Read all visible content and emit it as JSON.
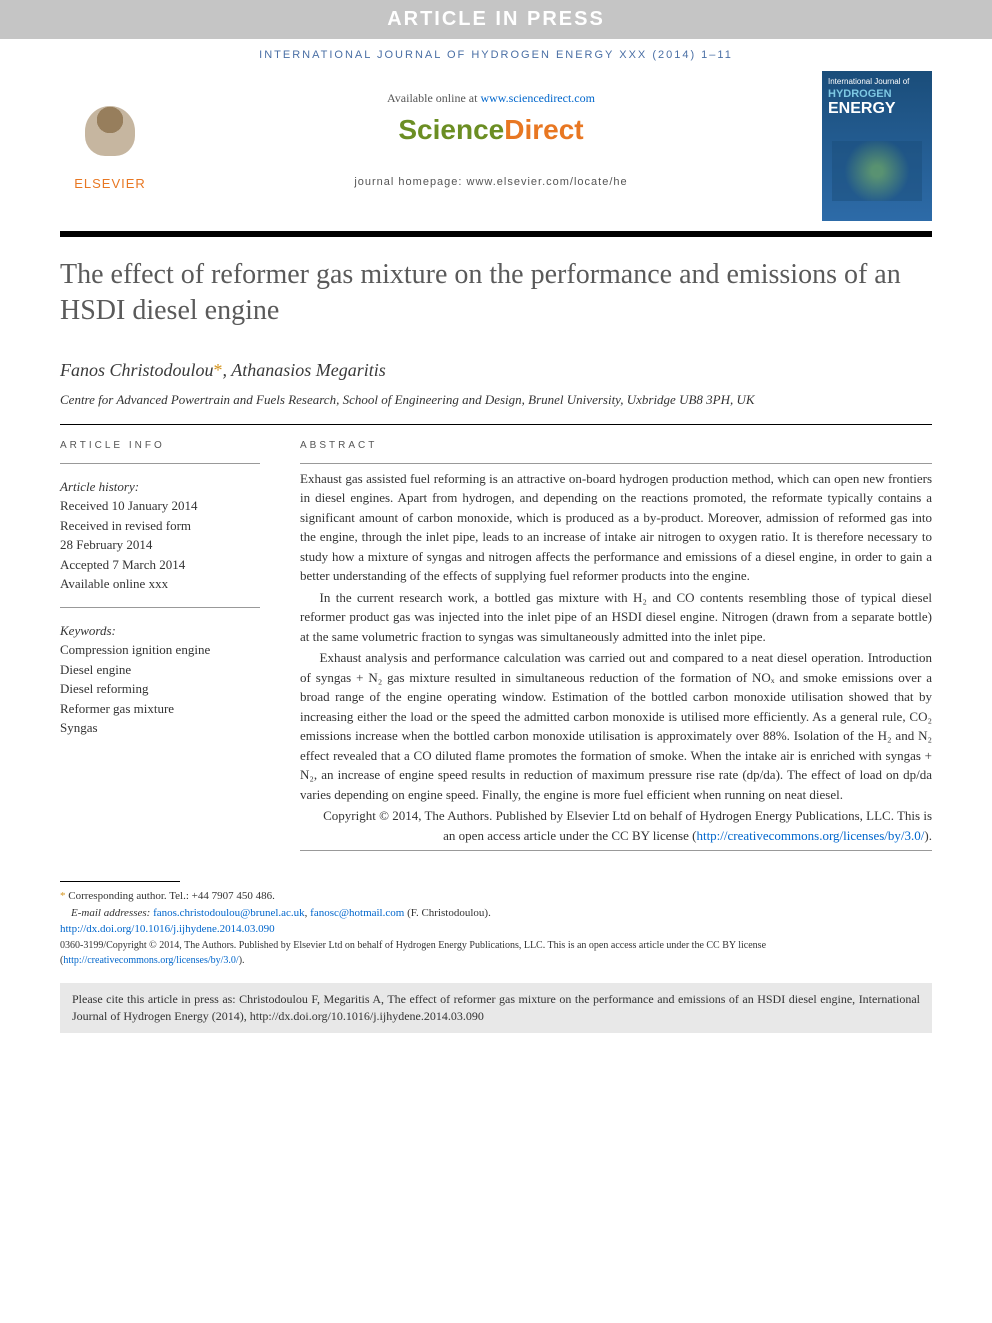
{
  "banner": "ARTICLE IN PRESS",
  "journal_ref": "INTERNATIONAL JOURNAL OF HYDROGEN ENERGY XXX (2014) 1–11",
  "header": {
    "available_prefix": "Available online at ",
    "available_link": "www.sciencedirect.com",
    "brand_a": "Science",
    "brand_b": "Direct",
    "homepage": "journal homepage: www.elsevier.com/locate/he",
    "publisher": "ELSEVIER",
    "cover_supertitle": "International Journal of",
    "cover_hydrogen": "HYDROGEN",
    "cover_energy": "ENERGY"
  },
  "title": "The effect of reformer gas mixture on the performance and emissions of an HSDI diesel engine",
  "authors": {
    "a1": "Fanos Christodoulou",
    "a2": "Athanasios Megaritis",
    "corr_marker": "*"
  },
  "affiliation": "Centre for Advanced Powertrain and Fuels Research, School of Engineering and Design, Brunel University, Uxbridge UB8 3PH, UK",
  "info": {
    "heading": "ARTICLE INFO",
    "history_label": "Article history:",
    "received": "Received 10 January 2014",
    "revised_l1": "Received in revised form",
    "revised_l2": "28 February 2014",
    "accepted": "Accepted 7 March 2014",
    "available": "Available online xxx",
    "kw_label": "Keywords:",
    "kw1": "Compression ignition engine",
    "kw2": "Diesel engine",
    "kw3": "Diesel reforming",
    "kw4": "Reformer gas mixture",
    "kw5": "Syngas"
  },
  "abstract": {
    "heading": "ABSTRACT",
    "p1": "Exhaust gas assisted fuel reforming is an attractive on-board hydrogen production method, which can open new frontiers in diesel engines. Apart from hydrogen, and depending on the reactions promoted, the reformate typically contains a significant amount of carbon monoxide, which is produced as a by-product. Moreover, admission of reformed gas into the engine, through the inlet pipe, leads to an increase of intake air nitrogen to oxygen ratio. It is therefore necessary to study how a mixture of syngas and nitrogen affects the performance and emissions of a diesel engine, in order to gain a better understanding of the effects of supplying fuel reformer products into the engine.",
    "p2": "In the current research work, a bottled gas mixture with H₂ and CO contents resembling those of typical diesel reformer product gas was injected into the inlet pipe of an HSDI diesel engine. Nitrogen (drawn from a separate bottle) at the same volumetric fraction to syngas was simultaneously admitted into the inlet pipe.",
    "p3": "Exhaust analysis and performance calculation was carried out and compared to a neat diesel operation. Introduction of syngas + N₂ gas mixture resulted in simultaneous reduction of the formation of NOₓ and smoke emissions over a broad range of the engine operating window. Estimation of the bottled carbon monoxide utilisation showed that by increasing either the load or the speed the admitted carbon monoxide is utilised more efficiently. As a general rule, CO₂ emissions increase when the bottled carbon monoxide utilisation is approximately over 88%. Isolation of the H₂ and N₂ effect revealed that a CO diluted flame promotes the formation of smoke. When the intake air is enriched with syngas + N₂, an increase of engine speed results in reduction of maximum pressure rise rate (dp/da). The effect of load on dp/da varies depending on engine speed. Finally, the engine is more fuel efficient when running on neat diesel.",
    "copyright_a": "Copyright © 2014, The Authors. Published by Elsevier Ltd on behalf of Hydrogen Energy Publications, LLC. This is an open access article under the CC BY license (",
    "copyright_link": "http://creativecommons.org/licenses/by/3.0/",
    "copyright_b": ")."
  },
  "footnotes": {
    "corr_label": "* Corresponding author.",
    "tel": " Tel.: +44 7907 450 486.",
    "email_label": "E-mail addresses: ",
    "email1": "fanos.christodoulou@brunel.ac.uk",
    "email_sep": ", ",
    "email2": "fanosc@hotmail.com",
    "email_suffix": " (F. Christodoulou).",
    "doi": "http://dx.doi.org/10.1016/j.ijhydene.2014.03.090",
    "issn_pre": "0360-3199/Copyright © 2014, The Authors. Published by Elsevier Ltd on behalf of Hydrogen Energy Publications, LLC. This is an open access article under the CC BY license (",
    "issn_link": "http://creativecommons.org/licenses/by/3.0/",
    "issn_post": ")."
  },
  "citebox": "Please cite this article in press as: Christodoulou F, Megaritis A, The effect of reformer gas mixture on the performance and emissions of an HSDI diesel engine, International Journal of Hydrogen Energy (2014), http://dx.doi.org/10.1016/j.ijhydene.2014.03.090",
  "colors": {
    "banner_bg": "#c5c5c5",
    "journal_ref_color": "#4a6fa5",
    "elsevier_orange": "#e87722",
    "sd_green": "#6b8e23",
    "link_blue": "#0066cc",
    "corr_gold": "#d4941e",
    "citebox_bg": "#e8e8e8"
  }
}
